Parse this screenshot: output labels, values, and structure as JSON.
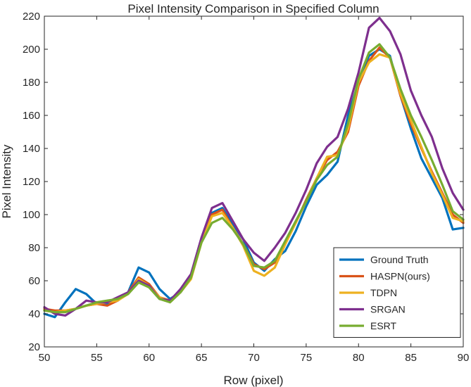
{
  "chart_data": {
    "type": "line",
    "title": "Pixel Intensity Comparison in Specified Column",
    "xlabel": "Row (pixel)",
    "ylabel": "Pixel Intensity",
    "xlim": [
      50,
      90
    ],
    "ylim": [
      20,
      220
    ],
    "xticks": [
      50,
      55,
      60,
      65,
      70,
      75,
      80,
      85,
      90
    ],
    "yticks": [
      20,
      40,
      60,
      80,
      100,
      120,
      140,
      160,
      180,
      200,
      220
    ],
    "grid": false,
    "legend_position": "bottom-right",
    "x": [
      50,
      51,
      52,
      53,
      54,
      55,
      56,
      57,
      58,
      59,
      60,
      61,
      62,
      63,
      64,
      65,
      66,
      67,
      68,
      69,
      70,
      71,
      72,
      73,
      74,
      75,
      76,
      77,
      78,
      79,
      80,
      81,
      82,
      83,
      84,
      85,
      86,
      87,
      88,
      89,
      90
    ],
    "series": [
      {
        "name": "Ground Truth",
        "color": "#0072BD",
        "values": [
          40,
          38,
          47,
          55,
          52,
          46,
          46,
          48,
          53,
          68,
          65,
          55,
          49,
          53,
          62,
          84,
          101,
          104,
          94,
          85,
          71,
          66,
          73,
          78,
          90,
          105,
          118,
          124,
          132,
          160,
          180,
          196,
          200,
          196,
          172,
          152,
          134,
          122,
          110,
          91,
          92
        ]
      },
      {
        "name": "HASPN(ours)",
        "color": "#D95319",
        "values": [
          43,
          42,
          42,
          43,
          45,
          46,
          45,
          48,
          53,
          62,
          58,
          50,
          48,
          54,
          63,
          85,
          100,
          103,
          92,
          82,
          70,
          67,
          71,
          83,
          95,
          109,
          122,
          133,
          138,
          150,
          178,
          193,
          201,
          195,
          172,
          155,
          140,
          126,
          113,
          100,
          95
        ]
      },
      {
        "name": "TDPN",
        "color": "#EDB120",
        "values": [
          42,
          41,
          42,
          43,
          45,
          46,
          47,
          48,
          52,
          61,
          57,
          50,
          47,
          53,
          61,
          83,
          99,
          101,
          92,
          81,
          66,
          63,
          68,
          82,
          95,
          108,
          122,
          135,
          136,
          152,
          180,
          192,
          197,
          195,
          173,
          157,
          141,
          125,
          112,
          98,
          96
        ]
      },
      {
        "name": "SRGAN",
        "color": "#7E2F8E",
        "values": [
          44,
          40,
          39,
          43,
          48,
          47,
          47,
          50,
          53,
          60,
          57,
          49,
          48,
          55,
          64,
          86,
          104,
          107,
          96,
          85,
          77,
          72,
          80,
          89,
          101,
          115,
          131,
          141,
          147,
          164,
          186,
          213,
          219,
          211,
          197,
          175,
          160,
          147,
          128,
          113,
          103
        ]
      },
      {
        "name": "ESRT",
        "color": "#77AC30",
        "values": [
          42,
          41,
          41,
          43,
          45,
          47,
          48,
          49,
          52,
          59,
          56,
          49,
          47,
          53,
          62,
          83,
          95,
          98,
          91,
          82,
          69,
          68,
          72,
          84,
          96,
          108,
          121,
          130,
          135,
          155,
          182,
          198,
          203,
          195,
          176,
          160,
          147,
          133,
          118,
          102,
          97
        ]
      }
    ]
  }
}
